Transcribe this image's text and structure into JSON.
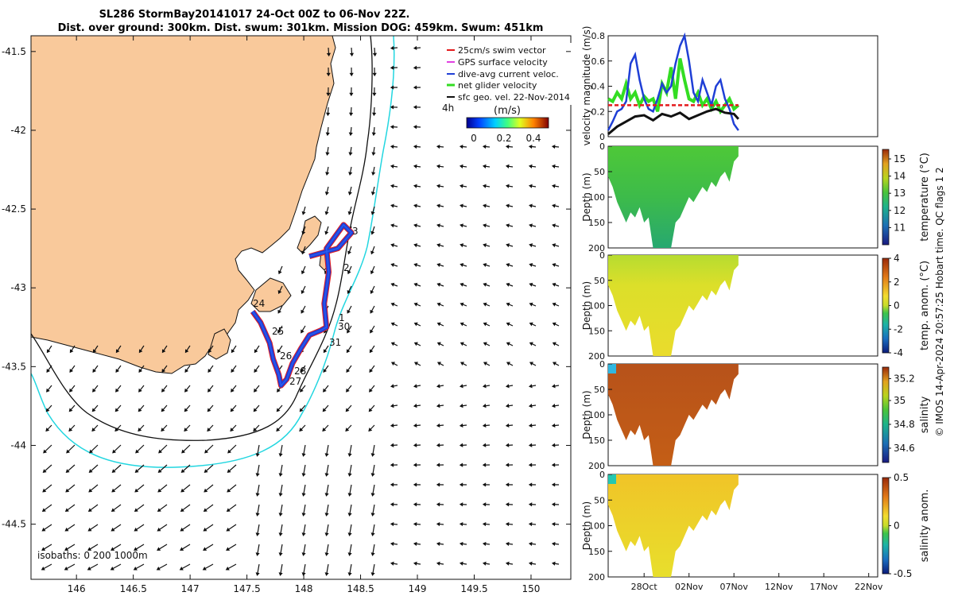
{
  "title": {
    "line1": "SL286 StormBay20141017 24-Oct 00Z to 06-Nov 22Z.",
    "line2": "Dist. over ground: 300km. Dist. swum: 301km. Mission DOG: 459km. Swum: 451km"
  },
  "chart_data": [
    {
      "type": "map",
      "xlabel": "",
      "ylabel": "",
      "xlim": [
        145.6,
        150.35
      ],
      "ylim": [
        -44.85,
        -41.4
      ],
      "xticks": [
        "146",
        "146.5",
        "147",
        "147.5",
        "148",
        "148.5",
        "149",
        "149.5",
        "150"
      ],
      "yticks": [
        "-41.5",
        "-42",
        "-42.5",
        "-43",
        "-43.5",
        "-44",
        "-44.5"
      ],
      "legend": [
        {
          "label": "25cm/s swim vector",
          "color": "#e41a1c"
        },
        {
          "label": "GPS surface velocity",
          "color": "#e040e0"
        },
        {
          "label": "dive-avg current veloc.",
          "color": "#1f3fd6"
        },
        {
          "label": "net glider velocity",
          "color": "#33dd22"
        },
        {
          "label": "sfc geo. vel. 22-Nov-2014",
          "color": "#111111"
        }
      ],
      "legend_note": "4h",
      "colorbar": {
        "label": "(m/s)",
        "ticks": [
          "0",
          "0.2",
          "0.4"
        ],
        "range": [
          0,
          0.5
        ]
      },
      "isobath_label": "isobaths: 0   200  1000m",
      "track_day_labels": [
        "1",
        "2",
        "3",
        "24",
        "25",
        "26",
        "27",
        "28",
        "30",
        "31"
      ],
      "track": [
        [
          148.05,
          -42.8
        ],
        [
          148.3,
          -42.75
        ],
        [
          148.42,
          -42.65
        ],
        [
          148.35,
          -42.6
        ],
        [
          148.2,
          -42.75
        ],
        [
          148.22,
          -42.9
        ],
        [
          148.18,
          -43.1
        ],
        [
          148.2,
          -43.25
        ],
        [
          148.15,
          -43.27
        ],
        [
          148.05,
          -43.3
        ],
        [
          147.98,
          -43.38
        ],
        [
          147.9,
          -43.48
        ],
        [
          147.85,
          -43.58
        ],
        [
          147.8,
          -43.62
        ],
        [
          147.78,
          -43.55
        ],
        [
          147.73,
          -43.45
        ],
        [
          147.7,
          -43.35
        ],
        [
          147.62,
          -43.22
        ],
        [
          147.55,
          -43.15
        ]
      ]
    },
    {
      "type": "line",
      "ylabel": "velocity magnitude (m/s)",
      "ylim": [
        0,
        0.8
      ],
      "yticks": [
        "0",
        "0.2",
        "0.4",
        "0.6",
        "0.8"
      ],
      "xlim_days": [
        0,
        30
      ],
      "series": [
        {
          "name": "dive-avg current",
          "color": "#1f3fd6",
          "x": [
            0,
            0.5,
            1,
            1.5,
            2,
            2.5,
            3,
            3.5,
            4,
            4.5,
            5,
            5.5,
            6,
            6.5,
            7,
            7.5,
            8,
            8.5,
            9,
            9.5,
            10,
            10.5,
            11,
            11.5,
            12,
            12.5,
            13,
            13.5,
            14,
            14.5
          ],
          "values": [
            0.05,
            0.12,
            0.2,
            0.22,
            0.28,
            0.58,
            0.65,
            0.45,
            0.3,
            0.22,
            0.2,
            0.3,
            0.42,
            0.35,
            0.4,
            0.58,
            0.72,
            0.82,
            0.6,
            0.35,
            0.28,
            0.45,
            0.35,
            0.25,
            0.4,
            0.45,
            0.3,
            0.22,
            0.1,
            0.05
          ]
        },
        {
          "name": "net glider",
          "color": "#33dd22",
          "x": [
            0,
            0.5,
            1,
            1.5,
            2,
            2.5,
            3,
            3.5,
            4,
            4.5,
            5,
            5.5,
            6,
            6.5,
            7,
            7.5,
            8,
            8.5,
            9,
            9.5,
            10,
            10.5,
            11,
            11.5,
            12,
            12.5,
            13,
            13.5,
            14,
            14.5
          ],
          "values": [
            0.3,
            0.28,
            0.35,
            0.3,
            0.42,
            0.3,
            0.35,
            0.25,
            0.32,
            0.28,
            0.3,
            0.2,
            0.42,
            0.35,
            0.55,
            0.3,
            0.62,
            0.45,
            0.3,
            0.28,
            0.35,
            0.25,
            0.3,
            0.22,
            0.28,
            0.2,
            0.25,
            0.3,
            0.22,
            0.25
          ]
        },
        {
          "name": "swim",
          "color": "#e41a1c",
          "x": [
            0,
            14.5
          ],
          "values": [
            0.25,
            0.25
          ]
        },
        {
          "name": "sfc geo",
          "color": "#111111",
          "x": [
            0,
            1,
            2,
            3,
            4,
            5,
            6,
            7,
            8,
            9,
            10,
            11,
            12,
            13,
            14,
            14.5
          ],
          "values": [
            0.02,
            0.08,
            0.12,
            0.16,
            0.17,
            0.13,
            0.18,
            0.16,
            0.19,
            0.14,
            0.17,
            0.2,
            0.22,
            0.19,
            0.18,
            0.14
          ]
        }
      ]
    },
    {
      "type": "heatmap",
      "ylabel": "Depth (m)",
      "ylim": [
        200,
        0
      ],
      "yticks": [
        "0",
        "50",
        "100",
        "150",
        "200"
      ],
      "colorbar_label": "temperature (°C)",
      "colorbar_ticks": [
        "15",
        "14",
        "13",
        "12",
        "11"
      ],
      "colorbar_range": [
        10.3,
        15.9
      ]
    },
    {
      "type": "heatmap",
      "ylabel": "Depth (m)",
      "ylim": [
        200,
        0
      ],
      "yticks": [
        "0",
        "50",
        "100",
        "150",
        "200"
      ],
      "colorbar_label": "temp. anom. (°C)",
      "colorbar_ticks": [
        "4",
        "2",
        "0",
        "-2",
        "-4"
      ],
      "colorbar_range": [
        -4,
        4
      ]
    },
    {
      "type": "heatmap",
      "ylabel": "Depth (m)",
      "ylim": [
        200,
        0
      ],
      "yticks": [
        "0",
        "50",
        "100",
        "150",
        "200"
      ],
      "colorbar_label": "salinity",
      "colorbar_ticks": [
        "35.2",
        "35",
        "34.8",
        "34.6"
      ],
      "colorbar_range": [
        34.5,
        35.3
      ]
    },
    {
      "type": "heatmap",
      "ylabel": "Depth (m)",
      "ylim": [
        200,
        0
      ],
      "yticks": [
        "0",
        "50",
        "100",
        "150",
        "200"
      ],
      "colorbar_label": "salinity anom.",
      "colorbar_ticks": [
        "0.5",
        "0",
        "-0.5"
      ],
      "colorbar_range": [
        -0.5,
        0.5
      ]
    }
  ],
  "time_axis": {
    "ticks": [
      "28Oct",
      "02Nov",
      "07Nov",
      "12Nov",
      "17Nov",
      "22Nov"
    ]
  },
  "side_note": "© IMOS 14-Apr-2024 20:57:25 Hobart time. QC flags 1  2"
}
